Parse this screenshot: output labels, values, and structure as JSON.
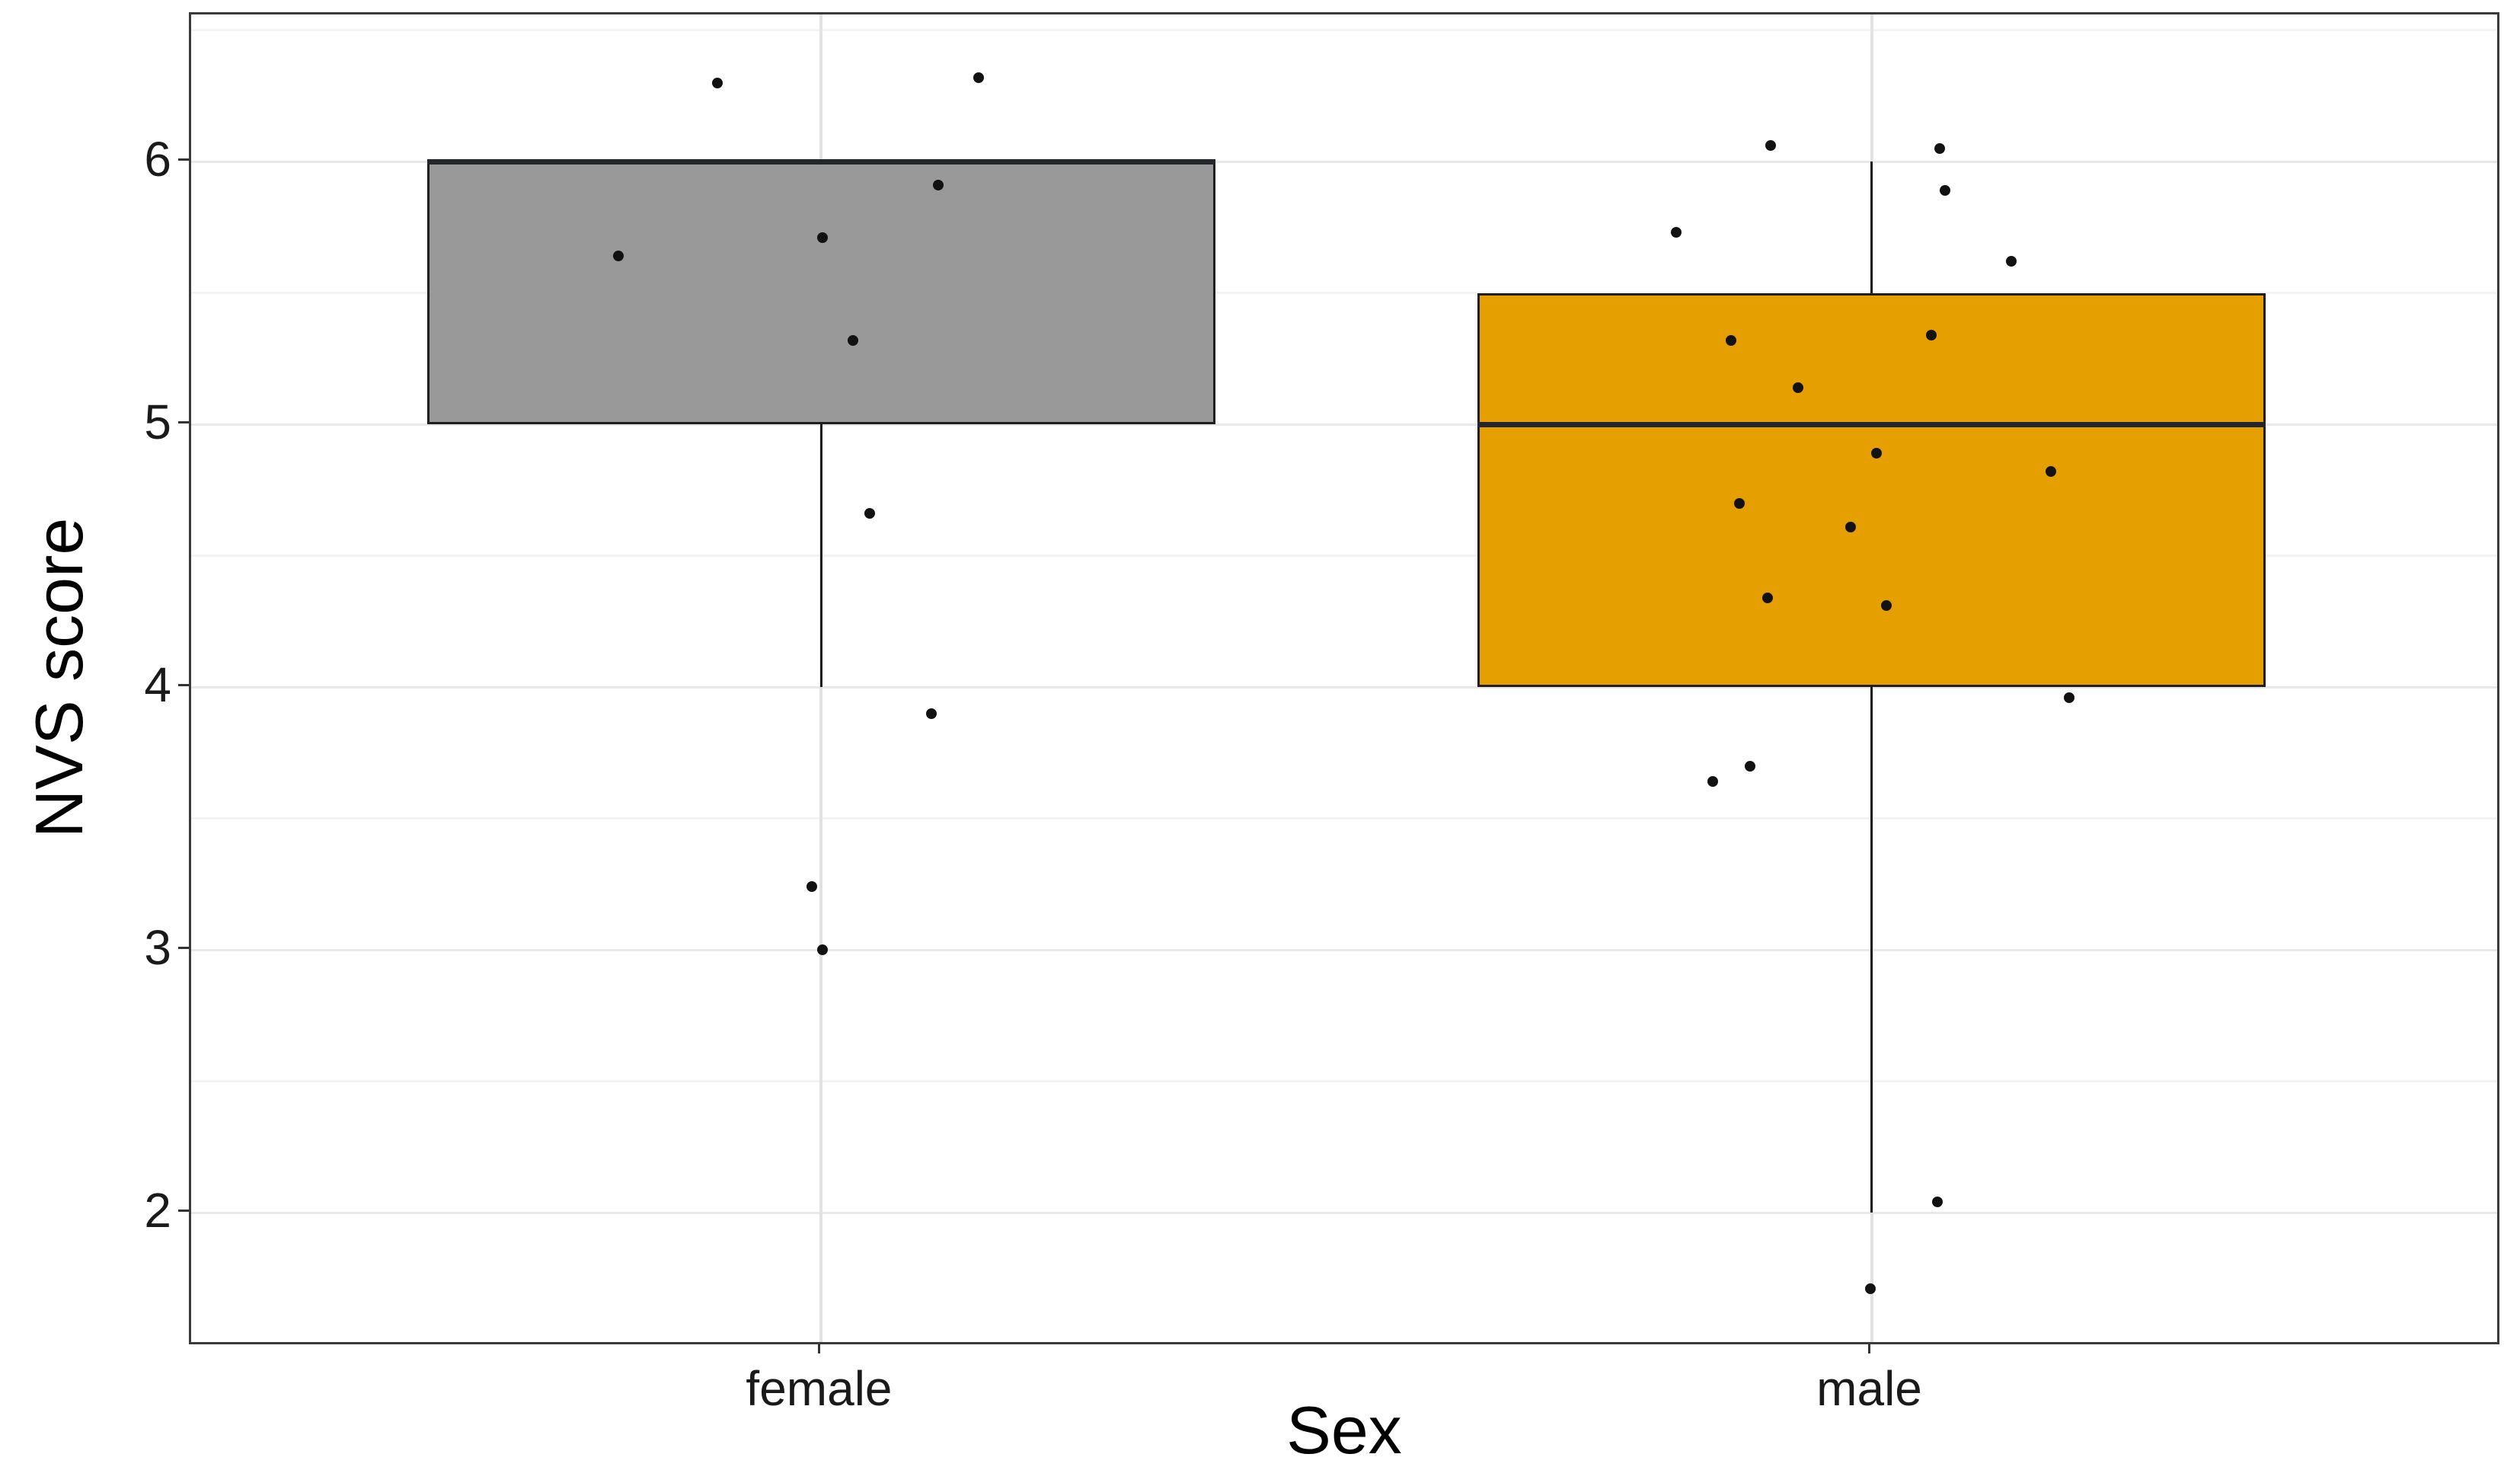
{
  "chart_data": {
    "type": "boxplot",
    "title": "",
    "xlabel": "Sex",
    "ylabel": "NVS score",
    "ylim": [
      1.49,
      6.56
    ],
    "yticks": [
      2,
      3,
      4,
      5,
      6
    ],
    "yticks_minor": [
      2.5,
      3.5,
      4.5,
      5.5,
      6.5
    ],
    "grid": "on",
    "legend": "none",
    "categories": [
      "female",
      "male"
    ],
    "boxes": [
      {
        "category": "female",
        "fill_color": "#999999",
        "q1": 5.0,
        "median": 6.0,
        "q3": 6.0,
        "whisker_low": 4.0,
        "whisker_high": 6.0
      },
      {
        "category": "male",
        "fill_color": "#E69F00",
        "q1": 4.0,
        "median": 5.0,
        "q3": 5.5,
        "whisker_low": 2.0,
        "whisker_high": 6.0
      }
    ],
    "series": [
      {
        "name": "female",
        "values": [
          6.32,
          6.3,
          5.91,
          5.71,
          5.64,
          5.32,
          4.66,
          3.9,
          3.24,
          3.0
        ]
      },
      {
        "name": "male",
        "values": [
          6.06,
          6.05,
          5.89,
          5.73,
          5.62,
          5.34,
          5.32,
          5.14,
          4.89,
          4.82,
          4.7,
          4.61,
          4.34,
          4.31,
          3.96,
          3.7,
          3.64,
          2.04,
          1.71
        ]
      }
    ],
    "points": [
      {
        "cat": 0,
        "jx": -0.099,
        "y": 6.3
      },
      {
        "cat": 0,
        "jx": 0.15,
        "y": 6.32
      },
      {
        "cat": 0,
        "jx": 0.111,
        "y": 5.91
      },
      {
        "cat": 0,
        "jx": 0.001,
        "y": 5.71
      },
      {
        "cat": 0,
        "jx": -0.193,
        "y": 5.64
      },
      {
        "cat": 0,
        "jx": 0.03,
        "y": 5.32
      },
      {
        "cat": 0,
        "jx": 0.046,
        "y": 4.66
      },
      {
        "cat": 0,
        "jx": 0.105,
        "y": 3.9
      },
      {
        "cat": 0,
        "jx": -0.009,
        "y": 3.24
      },
      {
        "cat": 0,
        "jx": 0.001,
        "y": 3.0
      },
      {
        "cat": 1,
        "jx": -0.096,
        "y": 6.06
      },
      {
        "cat": 1,
        "jx": 0.065,
        "y": 6.05
      },
      {
        "cat": 1,
        "jx": 0.07,
        "y": 5.89
      },
      {
        "cat": 1,
        "jx": -0.186,
        "y": 5.73
      },
      {
        "cat": 1,
        "jx": 0.133,
        "y": 5.62
      },
      {
        "cat": 1,
        "jx": 0.057,
        "y": 5.34
      },
      {
        "cat": 1,
        "jx": -0.134,
        "y": 5.32
      },
      {
        "cat": 1,
        "jx": -0.07,
        "y": 5.14
      },
      {
        "cat": 1,
        "jx": 0.005,
        "y": 4.89
      },
      {
        "cat": 1,
        "jx": 0.171,
        "y": 4.82
      },
      {
        "cat": 1,
        "jx": -0.126,
        "y": 4.7
      },
      {
        "cat": 1,
        "jx": -0.02,
        "y": 4.61
      },
      {
        "cat": 1,
        "jx": -0.099,
        "y": 4.34
      },
      {
        "cat": 1,
        "jx": 0.014,
        "y": 4.31
      },
      {
        "cat": 1,
        "jx": 0.188,
        "y": 3.96
      },
      {
        "cat": 1,
        "jx": -0.116,
        "y": 3.7
      },
      {
        "cat": 1,
        "jx": -0.151,
        "y": 3.64
      },
      {
        "cat": 1,
        "jx": 0.063,
        "y": 2.04
      },
      {
        "cat": 1,
        "jx": -0.001,
        "y": 1.71
      }
    ]
  }
}
